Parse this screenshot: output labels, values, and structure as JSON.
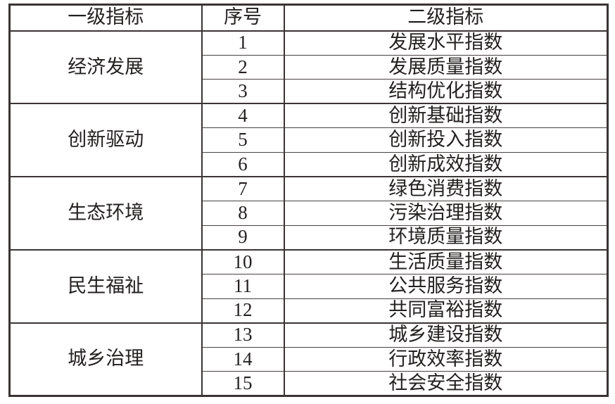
{
  "table": {
    "headers": [
      "一级指标",
      "序号",
      "二级指标"
    ],
    "groups": [
      {
        "primary": "经济发展",
        "rows": [
          {
            "no": "1",
            "secondary": "发展水平指数"
          },
          {
            "no": "2",
            "secondary": "发展质量指数"
          },
          {
            "no": "3",
            "secondary": "结构优化指数"
          }
        ]
      },
      {
        "primary": "创新驱动",
        "rows": [
          {
            "no": "4",
            "secondary": "创新基础指数"
          },
          {
            "no": "5",
            "secondary": "创新投入指数"
          },
          {
            "no": "6",
            "secondary": "创新成效指数"
          }
        ]
      },
      {
        "primary": "生态环境",
        "rows": [
          {
            "no": "7",
            "secondary": "绿色消费指数"
          },
          {
            "no": "8",
            "secondary": "污染治理指数"
          },
          {
            "no": "9",
            "secondary": "环境质量指数"
          }
        ]
      },
      {
        "primary": "民生福祉",
        "rows": [
          {
            "no": "10",
            "secondary": "生活质量指数"
          },
          {
            "no": "11",
            "secondary": "公共服务指数"
          },
          {
            "no": "12",
            "secondary": "共同富裕指数"
          }
        ]
      },
      {
        "primary": "城乡治理",
        "rows": [
          {
            "no": "13",
            "secondary": "城乡建设指数"
          },
          {
            "no": "14",
            "secondary": "行政效率指数"
          },
          {
            "no": "15",
            "secondary": "社会安全指数"
          }
        ]
      }
    ]
  },
  "colors": {
    "background": "#ffffff",
    "text": "#242020",
    "border_major": "#3b3434",
    "border_minor": "#4a4242"
  }
}
